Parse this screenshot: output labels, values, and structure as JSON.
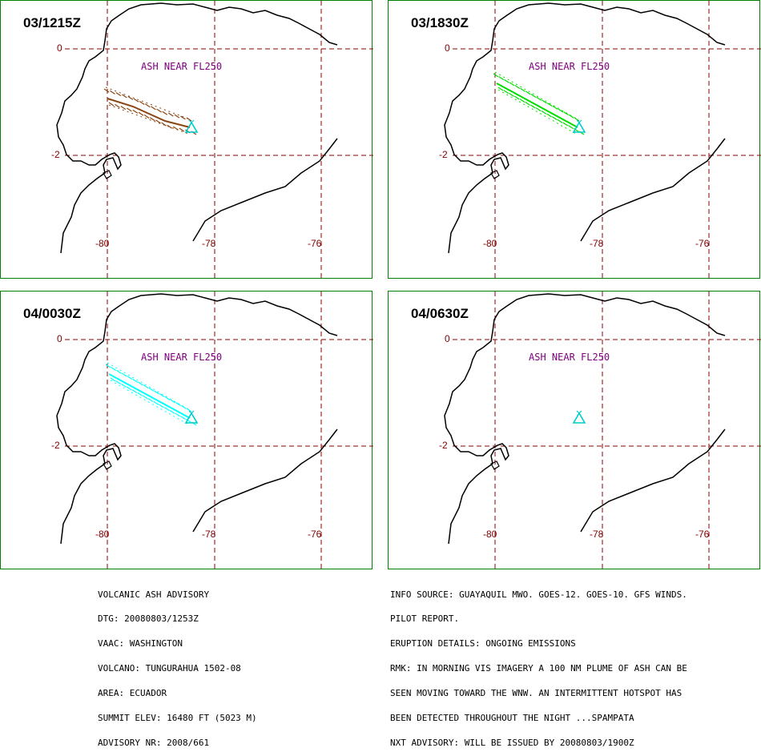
{
  "panels": [
    {
      "time": "03/1215Z",
      "ash_label": "ASH NEAR FL250",
      "plume_color": "#8B4513",
      "plume": "short"
    },
    {
      "time": "03/1830Z",
      "ash_label": "ASH NEAR FL250",
      "plume_color": "#00DD00",
      "plume": "long"
    },
    {
      "time": "04/0030Z",
      "ash_label": "ASH NEAR FL250",
      "plume_color": "#00FFFF",
      "plume": "long"
    },
    {
      "time": "04/0630Z",
      "ash_label": "ASH NEAR FL250",
      "plume_color": "",
      "plume": "none"
    }
  ],
  "axes": {
    "lat_labels": [
      "0",
      "-2"
    ],
    "lon_labels": [
      "-80",
      "-78",
      "-76"
    ],
    "grid_color": "#8B0000",
    "volcano_color": "#00CCCC"
  },
  "advisory_left": [
    "VOLCANIC ASH ADVISORY",
    "DTG: 20080803/1253Z",
    "VAAC: WASHINGTON",
    "VOLCANO: TUNGURAHUA 1502-08",
    "AREA: ECUADOR",
    "SUMMIT ELEV: 16480 FT (5023 M)",
    "ADVISORY NR: 2008/661"
  ],
  "advisory_right": [
    "INFO SOURCE: GUAYAQUIL MWO. GOES-12. GOES-10. GFS WINDS.",
    "PILOT REPORT.",
    "ERUPTION DETAILS: ONGOING EMISSIONS",
    "RMK: IN MORNING VIS IMAGERY A 100 NM PLUME OF ASH CAN BE",
    "SEEN MOVING TOWARD THE WNW. AN INTERMITTENT HOTSPOT HAS",
    "BEEN DETECTED THROUGHOUT THE NIGHT ...SPAMPATA",
    "NXT ADVISORY: WILL BE ISSUED BY 20080803/1900Z"
  ]
}
